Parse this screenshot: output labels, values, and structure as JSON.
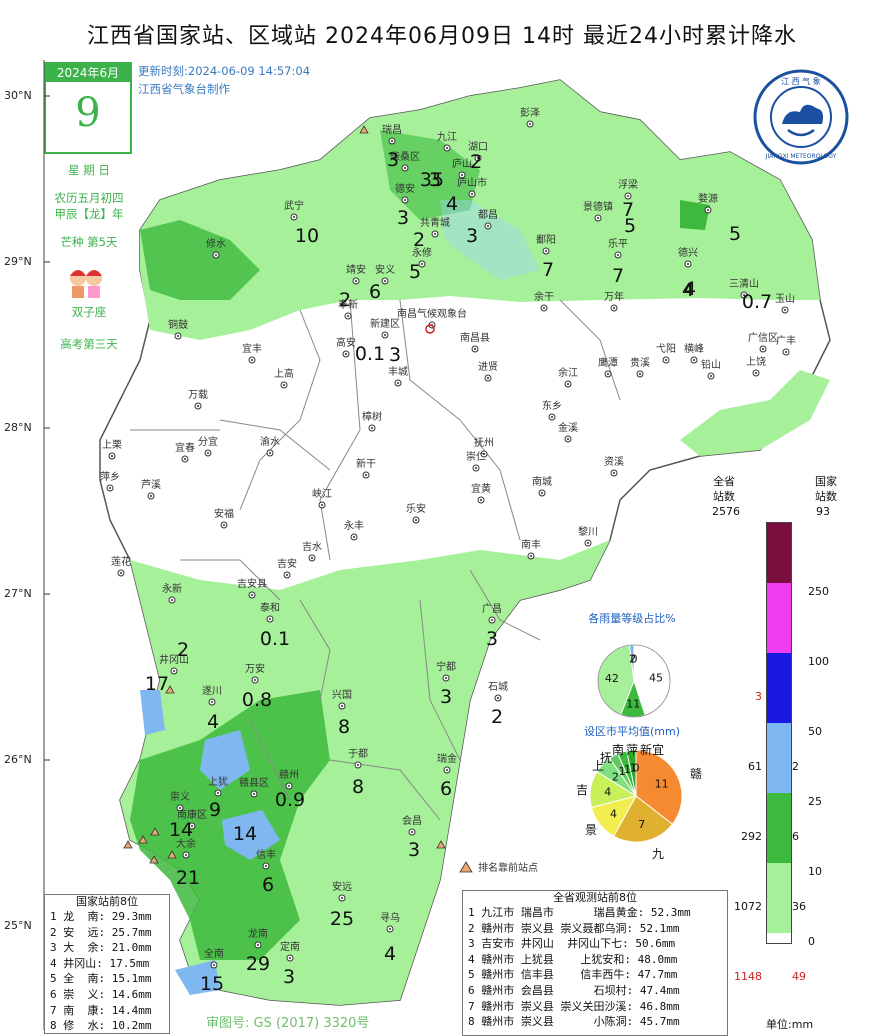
{
  "title": "江西省国家站、区域站    2024年06月09日  14时    最近24小时累计降水",
  "update_time": "更新时刻:2024-06-09 14:57:04",
  "producer": "江西省气象台制作",
  "calendar": {
    "month": "2024年6月",
    "day": "9",
    "weekday": "星 期 日",
    "lunar1": "农历五月初四",
    "lunar2": "甲辰【龙】年",
    "solar_term": "芒种 第5天",
    "zodiac": "双子座",
    "exam": "高考第三天"
  },
  "logo": {
    "top_text": "江 西 气 象",
    "bottom_text": "JIANGXI METEOROLOGY"
  },
  "colors": {
    "light_green": "#a6f09a",
    "mid_green": "#3dba3d",
    "dark_green": "#2b8f2b",
    "light_blue": "#7fb8f0",
    "blue": "#1818e0",
    "magenta": "#f03cf0",
    "maroon": "#7a0e3e",
    "boundary": "#555555",
    "station_red": "#cc2222"
  },
  "lat_labels": [
    "30°N",
    "29°N",
    "28°N",
    "27°N",
    "26°N",
    "25°N"
  ],
  "stations": [
    {
      "name": "彭泽"
    },
    {
      "name": "瑞昌"
    },
    {
      "name": "九江"
    },
    {
      "name": "湖口"
    },
    {
      "name": "柴桑区"
    },
    {
      "name": "庐山"
    },
    {
      "name": "庐山市"
    },
    {
      "name": "德安"
    },
    {
      "name": "都昌"
    },
    {
      "name": "共青城"
    },
    {
      "name": "武宁"
    },
    {
      "name": "修水"
    },
    {
      "name": "永修"
    },
    {
      "name": "浮梁"
    },
    {
      "name": "景德镇"
    },
    {
      "name": "婺源"
    },
    {
      "name": "鄱阳"
    },
    {
      "name": "乐平"
    },
    {
      "name": "德兴"
    },
    {
      "name": "三清山"
    },
    {
      "name": "玉山"
    },
    {
      "name": "靖安"
    },
    {
      "name": "安义"
    },
    {
      "name": "奉新"
    },
    {
      "name": "新建区"
    },
    {
      "name": "南昌气候观象台"
    },
    {
      "name": "南昌县"
    },
    {
      "name": "余干"
    },
    {
      "name": "万年"
    },
    {
      "name": "铜鼓"
    },
    {
      "name": "宜丰"
    },
    {
      "name": "高安"
    },
    {
      "name": "丰城"
    },
    {
      "name": "进贤"
    },
    {
      "name": "余江"
    },
    {
      "name": "鹰潭"
    },
    {
      "name": "贵溪"
    },
    {
      "name": "弋阳"
    },
    {
      "name": "横峰"
    },
    {
      "name": "铅山"
    },
    {
      "name": "广信区"
    },
    {
      "name": "广丰"
    },
    {
      "name": "上饶"
    },
    {
      "name": "上高"
    },
    {
      "name": "万载"
    },
    {
      "name": "樟树"
    },
    {
      "name": "东乡"
    },
    {
      "name": "上栗"
    },
    {
      "name": "宜春"
    },
    {
      "name": "分宜"
    },
    {
      "name": "渝水"
    },
    {
      "name": "新干"
    },
    {
      "name": "抚州"
    },
    {
      "name": "金溪"
    },
    {
      "name": "崇仁"
    },
    {
      "name": "萍乡"
    },
    {
      "name": "芦溪"
    },
    {
      "name": "峡江"
    },
    {
      "name": "宜黄"
    },
    {
      "name": "南城"
    },
    {
      "name": "资溪"
    },
    {
      "name": "安福"
    },
    {
      "name": "永丰"
    },
    {
      "name": "乐安"
    },
    {
      "name": "莲花"
    },
    {
      "name": "吉水"
    },
    {
      "name": "南丰"
    },
    {
      "name": "黎川"
    },
    {
      "name": "吉安"
    },
    {
      "name": "永新"
    },
    {
      "name": "吉安县"
    },
    {
      "name": "泰和"
    },
    {
      "name": "广昌"
    },
    {
      "name": "井冈山"
    },
    {
      "name": "万安"
    },
    {
      "name": "宁都"
    },
    {
      "name": "遂川"
    },
    {
      "name": "兴国"
    },
    {
      "name": "石城"
    },
    {
      "name": "上犹"
    },
    {
      "name": "赣县区"
    },
    {
      "name": "赣州"
    },
    {
      "name": "于都"
    },
    {
      "name": "瑞金"
    },
    {
      "name": "崇义"
    },
    {
      "name": "南康区"
    },
    {
      "name": "大余"
    },
    {
      "name": "信丰"
    },
    {
      "name": "会昌"
    },
    {
      "name": "安远"
    },
    {
      "name": "寻乌"
    },
    {
      "name": "龙南"
    },
    {
      "name": "全南"
    },
    {
      "name": "定南"
    }
  ],
  "county_values": [
    "3",
    "3",
    "2",
    "35",
    "4",
    "3",
    "3",
    "2",
    "10",
    "5",
    "6",
    "5",
    "2",
    "7",
    "4",
    "5",
    "7",
    "7",
    "4",
    "0.7",
    "0.1",
    "2",
    "0.1",
    "3",
    "3",
    "17",
    "4",
    "0.8",
    "3",
    "8",
    "2",
    "9",
    "14",
    "14",
    "0.9",
    "8",
    "6",
    "3",
    "21",
    "6",
    "25",
    "4",
    "29",
    "3",
    "15"
  ],
  "pie1": {
    "title": "各雨量等级占比%",
    "values": [
      45,
      11,
      42,
      2,
      0
    ],
    "labels": [
      "45",
      "11",
      "42",
      "2",
      "0"
    ]
  },
  "pie2": {
    "title": "设区市平均值(mm)",
    "slices": [
      {
        "name": "赣",
        "value": 11
      },
      {
        "name": "九",
        "value": 7
      },
      {
        "name": "景",
        "value": 4
      },
      {
        "name": "吉",
        "value": 4
      },
      {
        "name": "上",
        "value": 2
      },
      {
        "name": "抚",
        "value": 1
      },
      {
        "name": "南",
        "value": 1
      },
      {
        "name": "萍",
        "value": 1
      },
      {
        "name": "新",
        "value": 0
      },
      {
        "name": "宜",
        "value": 0
      }
    ],
    "inner_labels": [
      "11",
      "7",
      "4",
      "4",
      "2",
      "1",
      "1",
      "1",
      "0"
    ]
  },
  "rank_marker_label": "排名靠前站点",
  "national_top": {
    "title": "国家站前8位",
    "rows": [
      "1 龙  南: 29.3mm",
      "2 安  远: 25.7mm",
      "3 大  余: 21.0mm",
      "4 井冈山: 17.5mm",
      "5 全  南: 15.1mm",
      "6 崇  义: 14.6mm",
      "7 南  康: 14.4mm",
      "8 修  水: 10.2mm"
    ]
  },
  "province_top": {
    "title": "全省观测站前8位",
    "rows": [
      "1 九江市 瑞昌市      瑞昌黄金: 52.3mm",
      "2 赣州市 崇义县 崇义聂都乌洞: 52.1mm",
      "3 吉安市 井冈山  井冈山下七: 50.6mm",
      "4 赣州市 上犹县    上犹安和: 48.0mm",
      "5 赣州市 信丰县    信丰西牛: 47.7mm",
      "6 赣州市 会昌县      石坝村: 47.4mm",
      "7 赣州市 崇义县 崇义关田沙溪: 46.8mm",
      "8 赣州市 崇义县      小陈洞: 45.7mm"
    ]
  },
  "colorbar": {
    "header_left": "全省\n站数",
    "header_right": "国家\n站数",
    "thresholds": [
      "0",
      "10",
      "25",
      "50",
      "100",
      "250"
    ],
    "total_province": "2576",
    "total_national": "93",
    "province_counts": [
      "1148",
      "1072",
      "292",
      "61",
      "",
      "3",
      ""
    ],
    "national_counts": [
      "49",
      "36",
      "6",
      "2",
      "",
      "",
      ""
    ],
    "unit": "单位:mm"
  },
  "review_no": "审图号: GS (2017) 3320号"
}
